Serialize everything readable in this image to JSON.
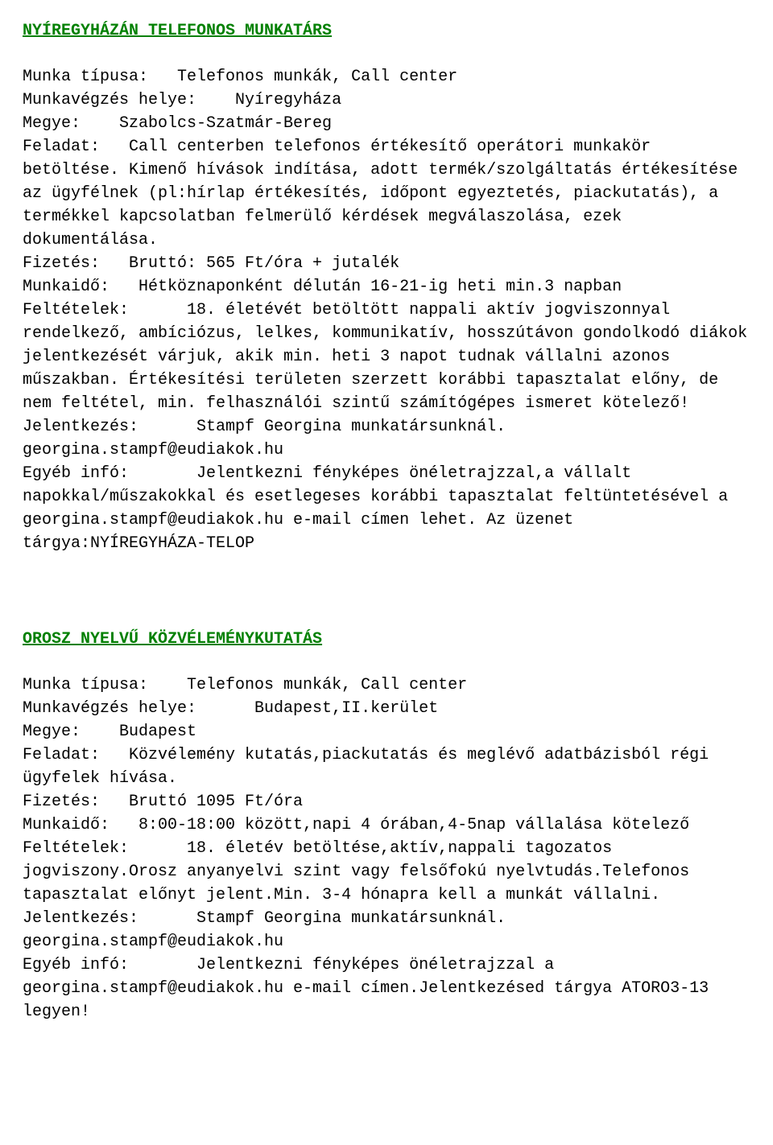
{
  "colors": {
    "title": "#008000",
    "text": "#000000",
    "background": "#ffffff"
  },
  "typography": {
    "font_family": "Courier New, monospace",
    "font_size_pt": 15,
    "line_height": 1.45,
    "title_weight": "bold",
    "title_underline": true
  },
  "listings": [
    {
      "title": "NYÍREGYHÁZÁN TELEFONOS MUNKATÁRS",
      "body": "Munka típusa:   Telefonos munkák, Call center\nMunkavégzés helye:    Nyíregyháza\nMegye:    Szabolcs-Szatmár-Bereg\nFeladat:   Call centerben telefonos értékesítő operátori munkakör betöltése. Kimenő hívások indítása, adott termék/szolgáltatás értékesítése az ügyfélnek (pl:hírlap értékesítés, időpont egyeztetés, piackutatás), a termékkel kapcsolatban felmerülő kérdések megválaszolása, ezek dokumentálása.\nFizetés:   Bruttó: 565 Ft/óra + jutalék\nMunkaidő:   Hétköznaponként délután 16-21-ig heti min.3 napban\nFeltételek:      18. életévét betöltött nappali aktív jogviszonnyal rendelkező, ambíciózus, lelkes, kommunikatív, hosszútávon gondolkodó diákok jelentkezését várjuk, akik min. heti 3 napot tudnak vállalni azonos műszakban. Értékesítési területen szerzett korábbi tapasztalat előny, de nem feltétel, min. felhasználói szintű számítógépes ismeret kötelező!\nJelentkezés:      Stampf Georgina munkatársunknál. georgina.stampf@eudiakok.hu\nEgyéb infó:       Jelentkezni fényképes önéletrajzzal,a vállalt napokkal/műszakokkal és esetlegeses korábbi tapasztalat feltüntetésével a georgina.stampf@eudiakok.hu e-mail címen lehet. Az üzenet tárgya:NYÍREGYHÁZA-TELOP"
    },
    {
      "title": "OROSZ NYELVŰ KÖZVÉLEMÉNYKUTATÁS",
      "body": "Munka típusa:    Telefonos munkák, Call center\nMunkavégzés helye:      Budapest,II.kerület\nMegye:    Budapest\nFeladat:   Közvélemény kutatás,piackutatás és meglévő adatbázisból régi ügyfelek hívása.\nFizetés:   Bruttó 1095 Ft/óra\nMunkaidő:   8:00-18:00 között,napi 4 órában,4-5nap vállalása kötelező\nFeltételek:      18. életév betöltése,aktív,nappali tagozatos jogviszony.Orosz anyanyelvi szint vagy felsőfokú nyelvtudás.Telefonos tapasztalat előnyt jelent.Min. 3-4 hónapra kell a munkát vállalni.\nJelentkezés:      Stampf Georgina munkatársunknál. georgina.stampf@eudiakok.hu\nEgyéb infó:       Jelentkezni fényképes önéletrajzzal a georgina.stampf@eudiakok.hu e-mail címen.Jelentkezésed tárgya ATORO3-13 legyen!"
    }
  ]
}
